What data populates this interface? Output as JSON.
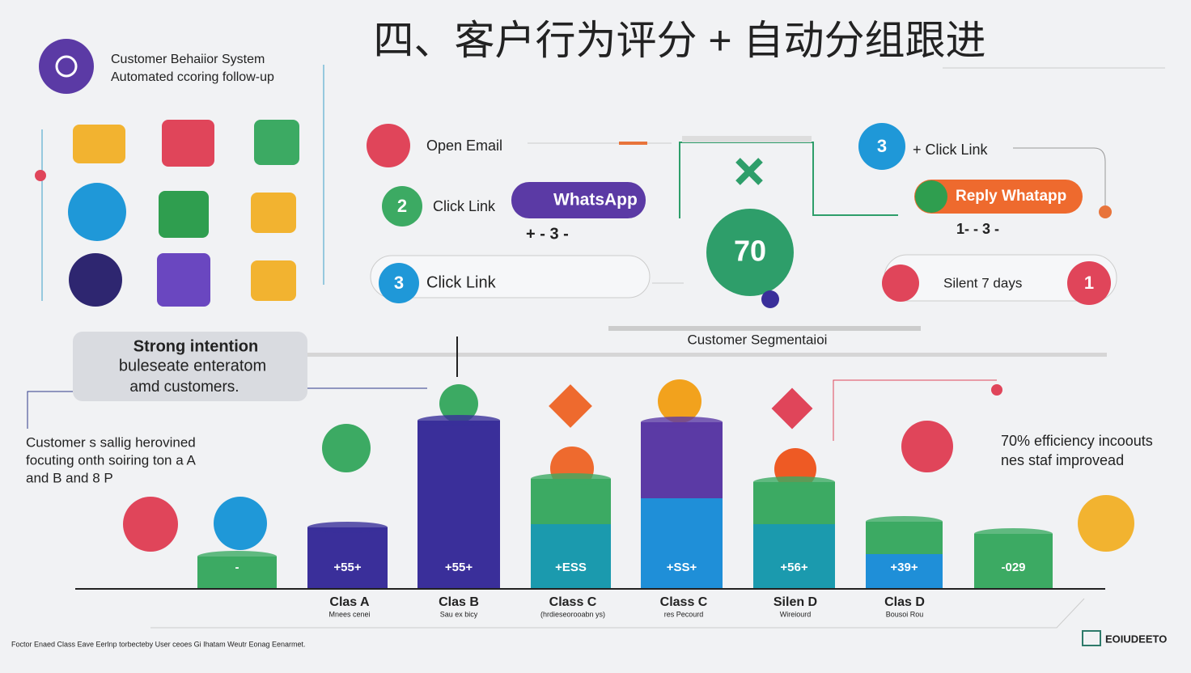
{
  "header": {
    "title": "四、客户行为评分 + 自动分组跟进",
    "brand_line1": "Customer Behaiior System",
    "brand_line2": "Automated ccoring follow-up"
  },
  "flow": {
    "open_email": "Open Email",
    "step2_badge": "2",
    "step2_label": "Click Link",
    "whatsapp": "WhatsApp",
    "step2_note": "+ - 3 -",
    "step3_badge": "3",
    "step3_label": "Click Link",
    "score": "70",
    "right_badge": "3",
    "right_label": "+ Click Link",
    "reply": "Reply Whatapp",
    "right_note": "1- - 3 -",
    "silent": "Silent 7 days",
    "silent_badge": "1"
  },
  "segmentation": {
    "title": "Customer Segmentaioi",
    "callout": [
      "Strong intention",
      "buleseate enteratom",
      "amd customers."
    ],
    "left_note": [
      "Customer s sallig herovined",
      "focuting onth soiring ton a A",
      "and B and 8 P"
    ],
    "right_note": [
      "70% efficiency incoouts",
      "nes staf improvead"
    ]
  },
  "bars": [
    {
      "label": "-"
    },
    {
      "label": "+55+",
      "name": "Clas A",
      "sub": "Mnees cenei"
    },
    {
      "label": "+55+",
      "name": "Clas B",
      "sub": "Sau ex bicy"
    },
    {
      "label": "+ESS",
      "name": "Class C",
      "sub": "(hrdieseorooabn ys)"
    },
    {
      "label": "+SS+",
      "name": "Class C",
      "sub": "res Pecourd"
    },
    {
      "label": "+56+",
      "name": "Silen D",
      "sub": "Wireiourd"
    },
    {
      "label": "+39+",
      "name": "Clas D",
      "sub": "Bousoi Rou"
    },
    {
      "label": "-029"
    }
  ],
  "footer": {
    "note": "Foctor Enaed Class Eave Eerlnp torbecteby User ceoes Gi Ihatam Weutr Eonag Eenarmet.",
    "brand": "EOIUDEETO"
  }
}
